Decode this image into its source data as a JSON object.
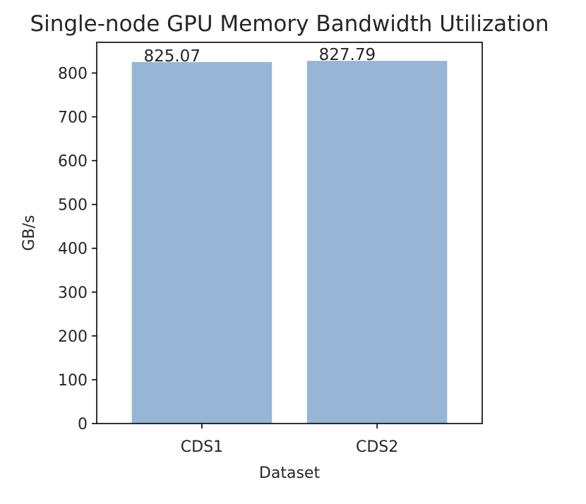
{
  "chart_data": {
    "type": "bar",
    "title": "Single-node GPU Memory Bandwidth Utilization",
    "xlabel": "Dataset",
    "ylabel": "GB/s",
    "categories": [
      "CDS1",
      "CDS2"
    ],
    "values": [
      825.07,
      827.79
    ],
    "value_labels": [
      "825.07",
      "827.79"
    ],
    "ylim": [
      0,
      870
    ],
    "yticks": [
      0,
      100,
      200,
      300,
      400,
      500,
      600,
      700,
      800
    ],
    "bar_color": "#97b6d5",
    "grid": false,
    "legend": "none"
  }
}
